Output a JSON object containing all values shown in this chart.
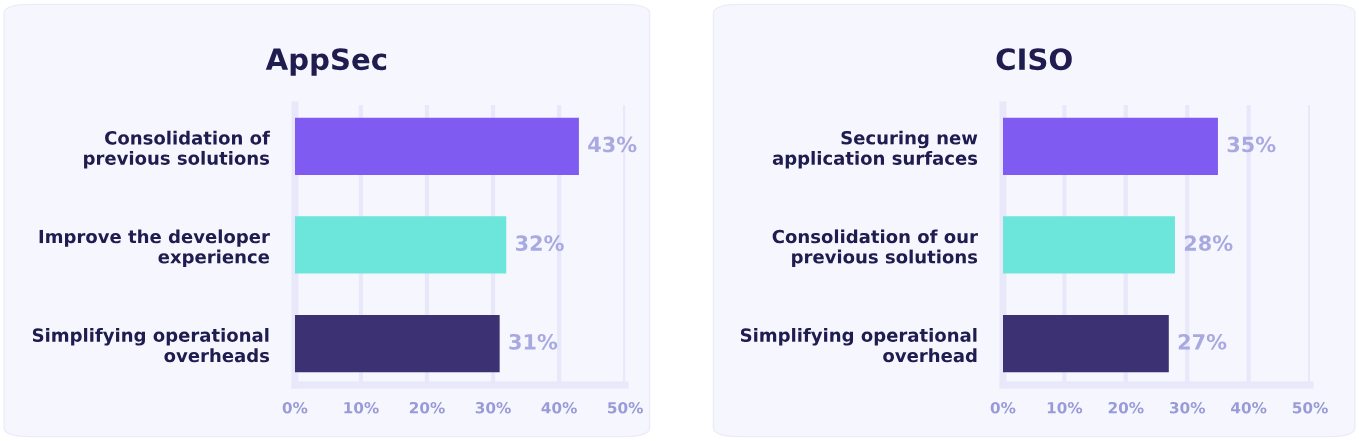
{
  "chart_data": [
    {
      "type": "bar",
      "orientation": "horizontal",
      "title": "AppSec",
      "categories": [
        "Consolidation of\nprevious solutions",
        "Improve the developer\nexperience",
        "Simplifying operational\noverheads"
      ],
      "values": [
        43,
        32,
        31
      ],
      "colors": [
        "#7f5bf2",
        "#6ce5da",
        "#3c3172"
      ],
      "value_labels": [
        "43%",
        "32%",
        "31%"
      ],
      "xlim": [
        0,
        50
      ],
      "xticks": [
        {
          "value": 0,
          "label": "0%"
        },
        {
          "value": 10,
          "label": "10%"
        },
        {
          "value": 20,
          "label": "20%"
        },
        {
          "value": 30,
          "label": "30%"
        },
        {
          "value": 40,
          "label": "40%"
        },
        {
          "value": 50,
          "label": "50%"
        }
      ],
      "grid": "x"
    },
    {
      "type": "bar",
      "orientation": "horizontal",
      "title": "CISO",
      "categories": [
        "Securing new\napplication surfaces",
        "Consolidation of our\nprevious solutions",
        "Simplifying operational\noverhead"
      ],
      "values": [
        35,
        28,
        27
      ],
      "colors": [
        "#7f5bf2",
        "#6ce5da",
        "#3c3172"
      ],
      "value_labels": [
        "35%",
        "28%",
        "27%"
      ],
      "xlim": [
        0,
        50
      ],
      "xticks": [
        {
          "value": 0,
          "label": "0%"
        },
        {
          "value": 10,
          "label": "10%"
        },
        {
          "value": 20,
          "label": "20%"
        },
        {
          "value": 30,
          "label": "30%"
        },
        {
          "value": 40,
          "label": "40%"
        },
        {
          "value": 50,
          "label": "50%"
        }
      ],
      "grid": "x"
    }
  ]
}
